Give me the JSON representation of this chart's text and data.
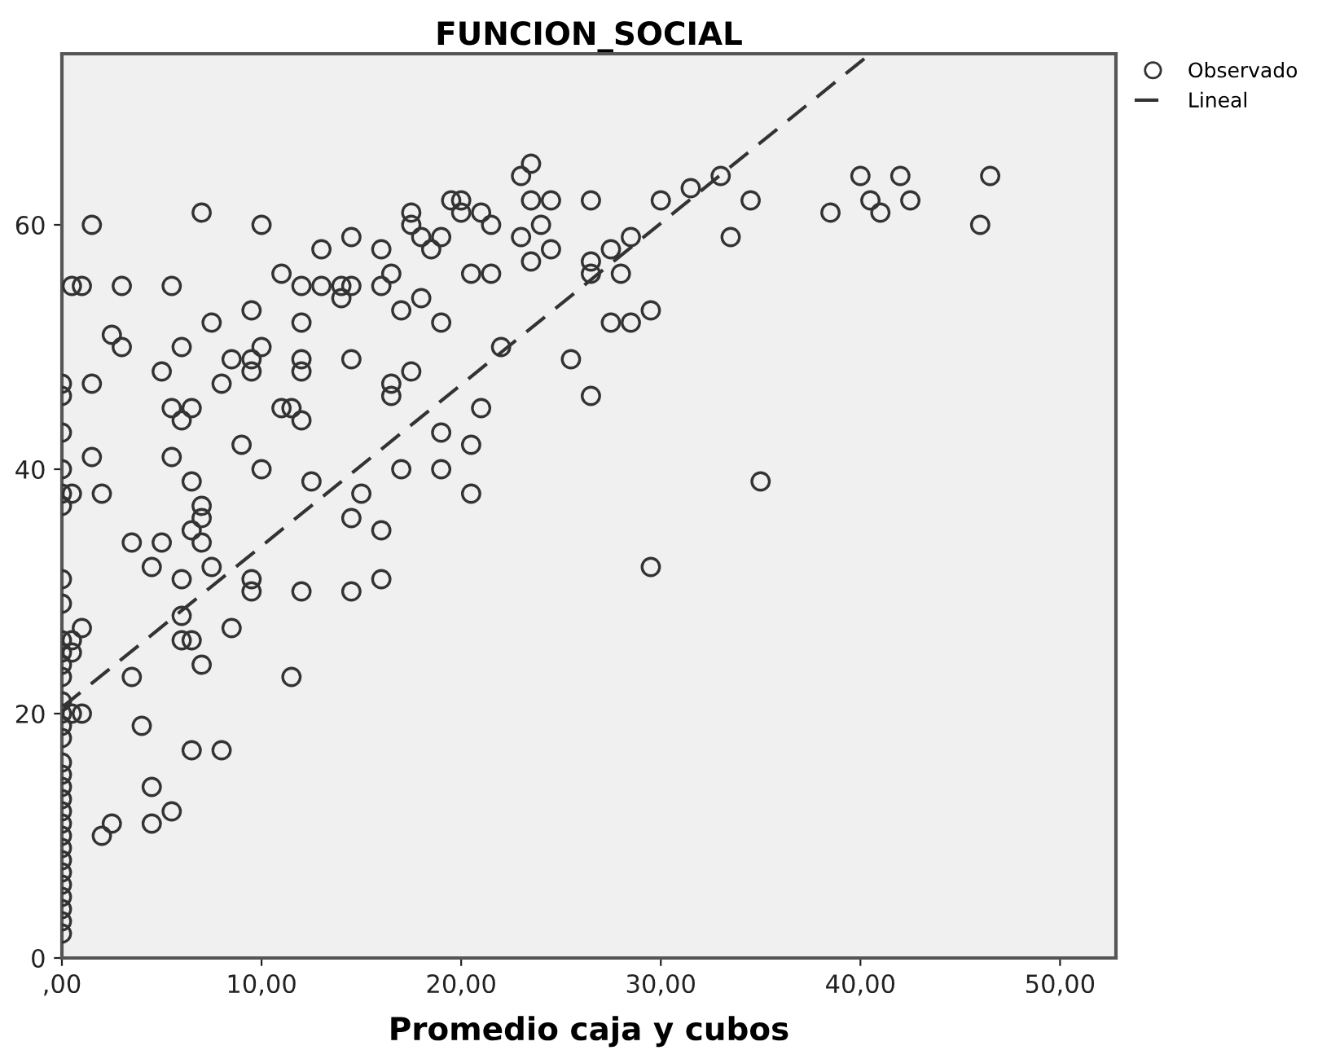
{
  "chart_data": {
    "type": "scatter",
    "title": "FUNCION_SOCIAL",
    "xlabel": "Promedio caja y cubos",
    "xlim": [
      0,
      52.8
    ],
    "ylim": [
      0,
      74
    ],
    "xticks": [
      {
        "value": 0,
        "label": ",00"
      },
      {
        "value": 10,
        "label": "10,00"
      },
      {
        "value": 20,
        "label": "20,00"
      },
      {
        "value": 30,
        "label": "30,00"
      },
      {
        "value": 40,
        "label": "40,00"
      },
      {
        "value": 50,
        "label": "50,00"
      }
    ],
    "yticks": [
      0,
      20,
      40,
      60
    ],
    "grid": false,
    "legend": "top right",
    "marker": "circle",
    "series": [
      {
        "name": "Observado",
        "color": "#333333",
        "x": [
          0,
          0,
          0,
          0,
          0,
          0,
          0,
          0,
          0,
          0,
          0,
          0,
          0,
          0,
          0,
          0,
          0,
          0,
          0,
          0,
          0,
          0,
          0,
          0,
          0,
          0,
          0,
          0,
          0,
          0,
          0,
          0.5,
          0.5,
          0.5,
          0.5,
          0.5,
          1,
          1,
          1,
          1.5,
          1.5,
          1.5,
          2,
          2,
          2.5,
          2.5,
          3,
          3,
          3.5,
          3.5,
          4,
          4.5,
          4.5,
          4.5,
          5,
          5,
          5.5,
          5.5,
          5.5,
          5.5,
          6,
          6,
          6,
          6,
          6,
          6.5,
          6.5,
          6.5,
          6.5,
          6.5,
          7,
          7,
          7,
          7,
          7,
          7.5,
          7.5,
          8,
          8,
          8.5,
          8.5,
          9,
          9.5,
          9.5,
          9.5,
          9.5,
          9.5,
          10,
          10,
          10,
          11,
          11,
          11.5,
          11.5,
          12,
          12,
          12,
          12,
          12,
          12,
          12.5,
          13,
          13,
          14,
          14,
          14.5,
          14.5,
          14.5,
          14.5,
          14.5,
          15,
          16,
          16,
          16,
          16,
          16.5,
          16.5,
          16.5,
          17,
          17,
          17.5,
          17.5,
          17.5,
          18,
          18,
          18.5,
          19,
          19,
          19,
          19,
          19.5,
          20,
          20,
          20.5,
          20.5,
          20.5,
          21,
          21,
          21.5,
          21.5,
          22,
          23,
          23,
          23.5,
          23.5,
          23.5,
          24,
          24.5,
          24.5,
          25.5,
          26.5,
          26.5,
          26.5,
          26.5,
          27.5,
          27.5,
          28,
          28.5,
          28.5,
          29.5,
          29.5,
          30,
          31.5,
          33,
          33.5,
          34.5,
          35,
          38.5,
          40,
          40.5,
          41,
          42,
          42.5,
          46,
          46.5
        ],
        "values": [
          2,
          3,
          4,
          5,
          6,
          7,
          8,
          9,
          10,
          11,
          12,
          13,
          14,
          15,
          16,
          18,
          19,
          20,
          21,
          23,
          24,
          25,
          26,
          29,
          31,
          37,
          38,
          40,
          43,
          46,
          47,
          55,
          38,
          26,
          25,
          20,
          55,
          27,
          20,
          60,
          47,
          41,
          38,
          10,
          51,
          11,
          55,
          50,
          34,
          23,
          19,
          32,
          14,
          11,
          48,
          34,
          55,
          45,
          41,
          12,
          50,
          44,
          31,
          28,
          26,
          45,
          39,
          35,
          26,
          17,
          61,
          37,
          36,
          34,
          24,
          52,
          32,
          47,
          17,
          49,
          27,
          42,
          53,
          49,
          48,
          31,
          30,
          60,
          50,
          40,
          56,
          45,
          45,
          23,
          55,
          52,
          49,
          48,
          44,
          30,
          39,
          58,
          55,
          54,
          55,
          59,
          55,
          49,
          36,
          30,
          38,
          58,
          55,
          35,
          31,
          56,
          47,
          46,
          53,
          40,
          61,
          60,
          48,
          59,
          54,
          58,
          59,
          52,
          43,
          40,
          62,
          62,
          61,
          56,
          42,
          38,
          61,
          45,
          60,
          56,
          50,
          64,
          59,
          65,
          62,
          57,
          60,
          62,
          58,
          49,
          62,
          57,
          56,
          46,
          58,
          52,
          56,
          59,
          52,
          53,
          32,
          62,
          63,
          64,
          59,
          62,
          39,
          61,
          64,
          62,
          61,
          64,
          62,
          60,
          64
        ]
      },
      {
        "name": "Lineal",
        "type": "line",
        "color": "#333333",
        "line_style": "dashed",
        "marker": "none",
        "x": [
          0,
          40.5
        ],
        "values": [
          20.5,
          74
        ]
      }
    ]
  }
}
